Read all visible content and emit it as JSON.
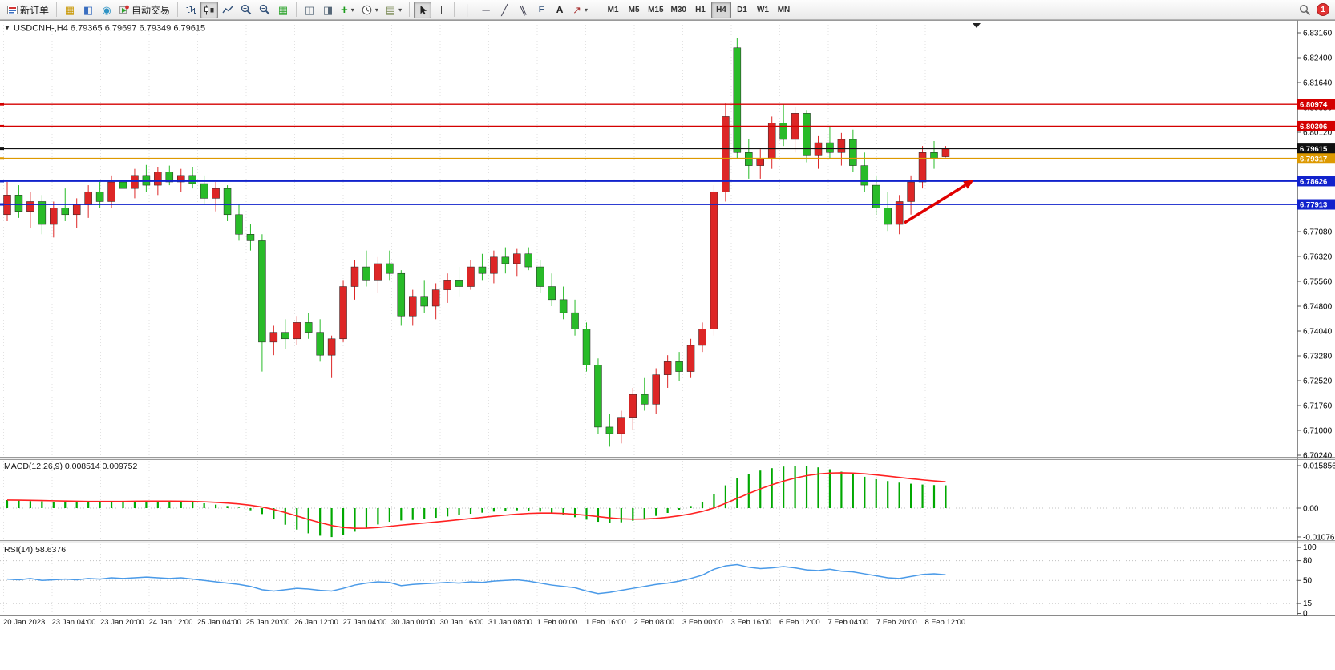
{
  "window": {
    "title_line": "USDCNH-,H4 6.79365 6.79697 6.79349 6.79615"
  },
  "toolbar": {
    "new_order": "新订单",
    "auto_trading": "自动交易",
    "fibo_tool": "F",
    "text_tool": "A",
    "timeframes": [
      "M1",
      "M5",
      "M15",
      "M30",
      "H1",
      "H4",
      "D1",
      "W1",
      "MN"
    ],
    "active_timeframe": "H4",
    "notification_count": "1"
  },
  "price_axis": [
    "6.83160",
    "6.82400",
    "6.81640",
    "6.80880",
    "6.80120",
    "6.79360",
    "6.78600",
    "6.77840",
    "6.77080",
    "6.76320",
    "6.75560",
    "6.74800",
    "6.74040",
    "6.73280",
    "6.72520",
    "6.71760",
    "6.71000",
    "6.70240"
  ],
  "levels": [
    {
      "label": "6.80974",
      "value": 6.80974,
      "color": "#d40000",
      "width": 1.4
    },
    {
      "label": "6.80306",
      "value": 6.80306,
      "color": "#d40000",
      "width": 1.4
    },
    {
      "label": "6.79615",
      "value": 6.79615,
      "color": "#111111",
      "width": 1.1
    },
    {
      "label": "6.79317",
      "value": 6.79317,
      "color": "#dd9900",
      "width": 1.8
    },
    {
      "label": "6.78626",
      "value": 6.78626,
      "color": "#1122cc",
      "width": 1.8
    },
    {
      "label": "6.77913",
      "value": 6.77913,
      "color": "#1122cc",
      "width": 1.8
    }
  ],
  "macd": {
    "label": "MACD(12,26,9) 0.008514 0.009752",
    "axis": [
      "0.015856",
      "0.00",
      "-0.01076"
    ]
  },
  "rsi": {
    "label": "RSI(14) 58.6376",
    "axis": [
      "100",
      "80",
      "50",
      "15",
      "0"
    ],
    "level_lines": [
      80,
      50,
      15
    ]
  },
  "time_axis": [
    "20 Jan 2023",
    "23 Jan 04:00",
    "23 Jan 20:00",
    "24 Jan 12:00",
    "25 Jan 04:00",
    "25 Jan 20:00",
    "26 Jan 12:00",
    "27 Jan 04:00",
    "30 Jan 00:00",
    "30 Jan 16:00",
    "31 Jan 08:00",
    "1 Feb 00:00",
    "1 Feb 16:00",
    "2 Feb 08:00",
    "3 Feb 00:00",
    "3 Feb 16:00",
    "6 Feb 12:00",
    "7 Feb 04:00",
    "7 Feb 20:00",
    "8 Feb 12:00"
  ],
  "chart_data": [
    {
      "type": "candlestick",
      "symbol": "USDCNH",
      "period": "H4",
      "up_color": "#dd2626",
      "down_color": "#28bb28",
      "price_range": [
        6.7024,
        6.8316
      ],
      "ohlc": [
        [
          6.776,
          6.786,
          6.774,
          6.782
        ],
        [
          6.782,
          6.785,
          6.775,
          6.777
        ],
        [
          6.777,
          6.783,
          6.772,
          6.78
        ],
        [
          6.78,
          6.782,
          6.77,
          6.773
        ],
        [
          6.773,
          6.78,
          6.769,
          6.778
        ],
        [
          6.778,
          6.784,
          6.774,
          6.776
        ],
        [
          6.776,
          6.781,
          6.772,
          6.779
        ],
        [
          6.779,
          6.785,
          6.775,
          6.783
        ],
        [
          6.783,
          6.786,
          6.778,
          6.78
        ],
        [
          6.78,
          6.788,
          6.778,
          6.786
        ],
        [
          6.786,
          6.79,
          6.782,
          6.784
        ],
        [
          6.784,
          6.79,
          6.781,
          6.788
        ],
        [
          6.788,
          6.7912,
          6.783,
          6.785
        ],
        [
          6.785,
          6.7905,
          6.782,
          6.789
        ],
        [
          6.789,
          6.791,
          6.785,
          6.786
        ],
        [
          6.786,
          6.79,
          6.783,
          6.788
        ],
        [
          6.788,
          6.7905,
          6.784,
          6.7855
        ],
        [
          6.7855,
          6.788,
          6.779,
          6.781
        ],
        [
          6.781,
          6.786,
          6.777,
          6.784
        ],
        [
          6.784,
          6.785,
          6.774,
          6.776
        ],
        [
          6.776,
          6.779,
          6.768,
          6.77
        ],
        [
          6.77,
          6.773,
          6.765,
          6.768
        ],
        [
          6.768,
          6.77,
          6.728,
          6.737
        ],
        [
          6.737,
          6.742,
          6.733,
          6.74
        ],
        [
          6.74,
          6.744,
          6.735,
          6.738
        ],
        [
          6.738,
          6.745,
          6.736,
          6.743
        ],
        [
          6.743,
          6.746,
          6.738,
          6.74
        ],
        [
          6.74,
          6.744,
          6.731,
          6.733
        ],
        [
          6.733,
          6.739,
          6.726,
          6.738
        ],
        [
          6.738,
          6.756,
          6.737,
          6.754
        ],
        [
          6.754,
          6.762,
          6.75,
          6.76
        ],
        [
          6.76,
          6.765,
          6.754,
          6.756
        ],
        [
          6.756,
          6.763,
          6.752,
          6.761
        ],
        [
          6.761,
          6.765,
          6.756,
          6.758
        ],
        [
          6.758,
          6.759,
          6.742,
          6.745
        ],
        [
          6.745,
          6.753,
          6.742,
          6.751
        ],
        [
          6.751,
          6.756,
          6.746,
          6.748
        ],
        [
          6.748,
          6.755,
          6.744,
          6.753
        ],
        [
          6.753,
          6.758,
          6.749,
          6.756
        ],
        [
          6.756,
          6.76,
          6.751,
          6.754
        ],
        [
          6.754,
          6.762,
          6.753,
          6.76
        ],
        [
          6.76,
          6.764,
          6.756,
          6.758
        ],
        [
          6.758,
          6.765,
          6.755,
          6.763
        ],
        [
          6.763,
          6.766,
          6.758,
          6.761
        ],
        [
          6.761,
          6.7655,
          6.757,
          6.764
        ],
        [
          6.764,
          6.766,
          6.759,
          6.76
        ],
        [
          6.76,
          6.762,
          6.752,
          6.754
        ],
        [
          6.754,
          6.758,
          6.748,
          6.75
        ],
        [
          6.75,
          6.754,
          6.744,
          6.746
        ],
        [
          6.746,
          6.75,
          6.739,
          6.741
        ],
        [
          6.741,
          6.743,
          6.728,
          6.73
        ],
        [
          6.73,
          6.732,
          6.709,
          6.711
        ],
        [
          6.711,
          6.715,
          6.705,
          6.709
        ],
        [
          6.709,
          6.716,
          6.706,
          6.714
        ],
        [
          6.714,
          6.723,
          6.71,
          6.721
        ],
        [
          6.721,
          6.726,
          6.716,
          6.718
        ],
        [
          6.718,
          6.729,
          6.715,
          6.727
        ],
        [
          6.727,
          6.733,
          6.723,
          6.731
        ],
        [
          6.731,
          6.734,
          6.725,
          6.728
        ],
        [
          6.728,
          6.738,
          6.726,
          6.736
        ],
        [
          6.736,
          6.743,
          6.734,
          6.741
        ],
        [
          6.741,
          6.785,
          6.739,
          6.783
        ],
        [
          6.783,
          6.81,
          6.78,
          6.806
        ],
        [
          6.827,
          6.83,
          6.793,
          6.795
        ],
        [
          6.795,
          6.799,
          6.787,
          6.791
        ],
        [
          6.791,
          6.796,
          6.787,
          6.793
        ],
        [
          6.793,
          6.806,
          6.79,
          6.804
        ],
        [
          6.804,
          6.8097,
          6.797,
          6.799
        ],
        [
          6.799,
          6.809,
          6.795,
          6.807
        ],
        [
          6.807,
          6.808,
          6.792,
          6.794
        ],
        [
          6.794,
          6.8,
          6.79,
          6.798
        ],
        [
          6.798,
          6.803,
          6.793,
          6.795
        ],
        [
          6.795,
          6.801,
          6.791,
          6.799
        ],
        [
          6.799,
          6.802,
          6.789,
          6.791
        ],
        [
          6.791,
          6.795,
          6.783,
          6.785
        ],
        [
          6.785,
          6.788,
          6.776,
          6.778
        ],
        [
          6.778,
          6.783,
          6.771,
          6.773
        ],
        [
          6.773,
          6.782,
          6.77,
          6.78
        ],
        [
          6.78,
          6.788,
          6.776,
          6.786
        ],
        [
          6.786,
          6.797,
          6.784,
          6.795
        ],
        [
          6.795,
          6.7985,
          6.79,
          6.793
        ],
        [
          6.7937,
          6.797,
          6.7935,
          6.7962
        ]
      ]
    },
    {
      "type": "bar",
      "name": "MACD(12,26,9)",
      "color": "#00a800",
      "range": [
        -0.01076,
        0.015856
      ],
      "values": [
        0.003,
        0.0028,
        0.0026,
        0.0025,
        0.0024,
        0.0023,
        0.0022,
        0.0023,
        0.0024,
        0.0025,
        0.0026,
        0.0027,
        0.0028,
        0.0027,
        0.0026,
        0.0024,
        0.0022,
        0.0018,
        0.0013,
        0.0008,
        0.0002,
        -0.0008,
        -0.0022,
        -0.0042,
        -0.0062,
        -0.008,
        -0.0094,
        -0.0103,
        -0.0108,
        -0.0101,
        -0.0088,
        -0.0074,
        -0.0061,
        -0.0051,
        -0.0046,
        -0.0044,
        -0.004,
        -0.0036,
        -0.0031,
        -0.0026,
        -0.0021,
        -0.0017,
        -0.0013,
        -0.001,
        -0.0008,
        -0.0009,
        -0.0013,
        -0.0019,
        -0.0026,
        -0.0034,
        -0.0043,
        -0.0051,
        -0.0055,
        -0.0053,
        -0.0047,
        -0.0039,
        -0.0029,
        -0.0018,
        -0.0006,
        0.0008,
        0.0024,
        0.0052,
        0.0085,
        0.0112,
        0.0128,
        0.014,
        0.0149,
        0.0155,
        0.0158,
        0.0157,
        0.0152,
        0.0145,
        0.0136,
        0.0127,
        0.0117,
        0.0108,
        0.0101,
        0.0095,
        0.0091,
        0.0088,
        0.0086,
        0.0085
      ],
      "signal": {
        "name": "Signal",
        "color": "#ff2222",
        "period": 9
      }
    },
    {
      "type": "line",
      "name": "RSI(14)",
      "color": "#4a9ae8",
      "range": [
        0,
        100
      ],
      "values": [
        52,
        51,
        53,
        50,
        51,
        52,
        51,
        53,
        52,
        54,
        53,
        54,
        55,
        54,
        53,
        54,
        52,
        50,
        48,
        46,
        44,
        41,
        36,
        34,
        36,
        38,
        37,
        35,
        34,
        38,
        43,
        46,
        48,
        47,
        42,
        44,
        45,
        46,
        47,
        46,
        48,
        47,
        49,
        50,
        51,
        49,
        46,
        43,
        41,
        39,
        34,
        30,
        32,
        35,
        38,
        41,
        44,
        46,
        49,
        53,
        58,
        67,
        72,
        74,
        70,
        68,
        69,
        71,
        69,
        66,
        65,
        67,
        64,
        63,
        60,
        57,
        54,
        53,
        56,
        59,
        60,
        58.6
      ]
    }
  ],
  "annotation": {
    "type": "arrow",
    "color": "#e00000",
    "from": [
      1128,
      253
    ],
    "to": [
      1204,
      206
    ]
  }
}
